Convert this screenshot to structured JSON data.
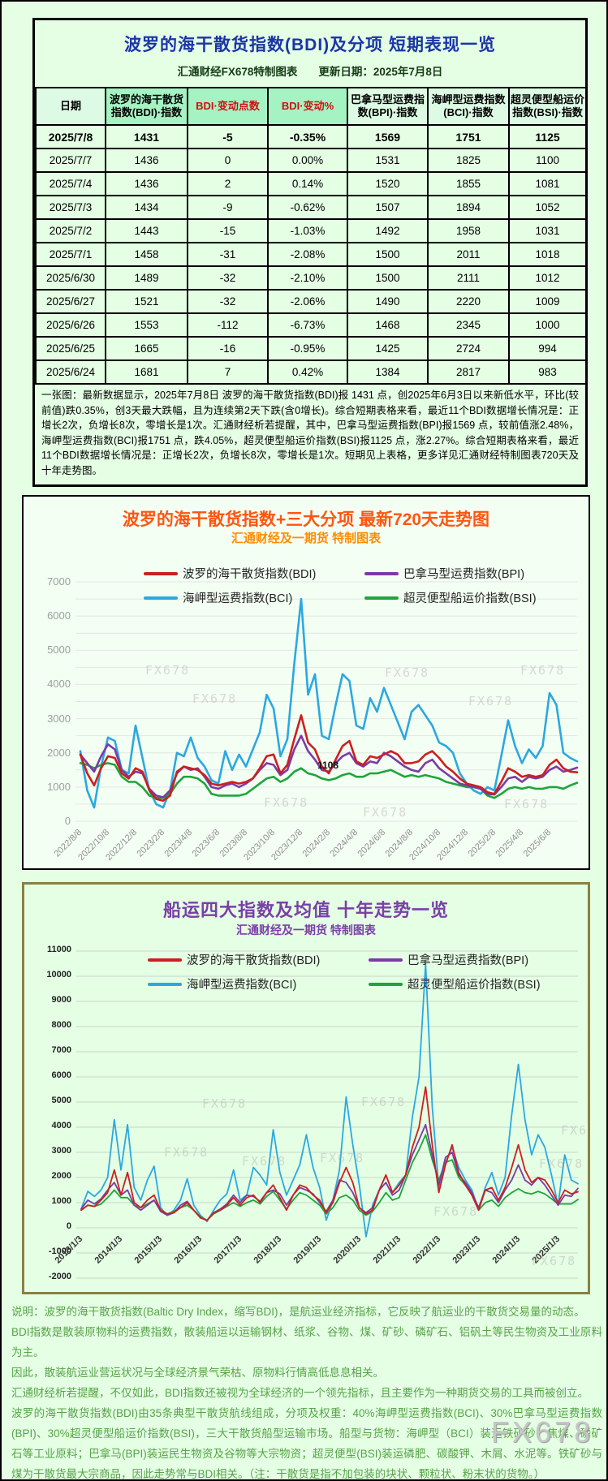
{
  "page": {
    "watermark": "FX678"
  },
  "colors": {
    "table_title": "#1b35a8",
    "header_accent_red": "#cc1111",
    "chart1_title": "#ff5511",
    "chart1_subtitle": "#ff8c00",
    "chart2_title": "#7a3fa8",
    "footer_text": "#57a348",
    "series_bdi": "#cc1f1f",
    "series_bpi": "#7b3ba6",
    "series_bci": "#2ba8e0",
    "series_bsi": "#1fa43c"
  },
  "table_panel": {
    "title": "波罗的海干散货指数(BDI)及分项  短期表现一览",
    "brand": "汇通财经FX678特制图表",
    "update_date": "更新日期：2025年7月8日",
    "columns": [
      {
        "label": "日期",
        "accent": false,
        "tone": "pale"
      },
      {
        "label": "波罗的海干散货指数(BDI)·指数",
        "accent": false,
        "tone": "mint"
      },
      {
        "label": "BDI·变动点数",
        "accent": true,
        "tone": "mint"
      },
      {
        "label": "BDI·变动%",
        "accent": true,
        "tone": "mint"
      },
      {
        "label": "巴拿马型运费指数(BPI)·指数",
        "accent": false,
        "tone": "pale"
      },
      {
        "label": "海岬型运费指数(BCI)·指数",
        "accent": false,
        "tone": "pale"
      },
      {
        "label": "超灵便型船运价指数(BSI)·指数",
        "accent": false,
        "tone": "pale"
      }
    ],
    "rows": [
      [
        "2025/7/8",
        "1431",
        "-5",
        "-0.35%",
        "1569",
        "1751",
        "1125"
      ],
      [
        "2025/7/7",
        "1436",
        "0",
        "0.00%",
        "1531",
        "1825",
        "1100"
      ],
      [
        "2025/7/4",
        "1436",
        "2",
        "0.14%",
        "1520",
        "1855",
        "1081"
      ],
      [
        "2025/7/3",
        "1434",
        "-9",
        "-0.62%",
        "1507",
        "1894",
        "1052"
      ],
      [
        "2025/7/2",
        "1443",
        "-15",
        "-1.03%",
        "1492",
        "1958",
        "1031"
      ],
      [
        "2025/7/1",
        "1458",
        "-31",
        "-2.08%",
        "1500",
        "2011",
        "1018"
      ],
      [
        "2025/6/30",
        "1489",
        "-32",
        "-2.10%",
        "1500",
        "2111",
        "1012"
      ],
      [
        "2025/6/27",
        "1521",
        "-32",
        "-2.06%",
        "1490",
        "2220",
        "1009"
      ],
      [
        "2025/6/26",
        "1553",
        "-112",
        "-6.73%",
        "1468",
        "2345",
        "1000"
      ],
      [
        "2025/6/25",
        "1665",
        "-16",
        "-0.95%",
        "1425",
        "2724",
        "994"
      ],
      [
        "2025/6/24",
        "1681",
        "7",
        "0.42%",
        "1384",
        "2817",
        "983"
      ]
    ],
    "summary": "一张图：最新数据显示，2025年7月8日 波罗的海干散货指数(BDI)报 1431 点，创2025年6月3日以来新低水平，环比(较前值)跌0.35%，创3天最大跌幅，且为连续第2天下跌(含0增长)。综合短期表格来看，最近11个BDI数据增长情况是：正增长2次，负增长8次，零增长是1次。汇通财经析若提醒，其中，巴拿马型运费指数(BPI)报1569 点，较前值涨2.48%，海岬型运费指数(BCI)报1751 点，跌4.05%，超灵便型船运价指数(BSI)报1125 点，涨2.27%。综合短期表格来看，最近11个BDI数据增长情况是：正增长2次，负增长8次，零增长是1次。短期见上表格，更多详见汇通财经特制图表720天及十年走势图。"
  },
  "chart_data": [
    {
      "type": "line",
      "title": "波罗的海干散货指数+三大分项  最新720天走势图",
      "subtitle": "汇通财经及一期货 特制图表",
      "ylim": [
        0,
        7000
      ],
      "ytick_step": 1000,
      "grid": true,
      "legend_position": "top",
      "x_labels": [
        "2022/8/8",
        "2022/10/8",
        "2022/12/8",
        "2023/2/8",
        "2023/4/8",
        "2023/6/8",
        "2023/8/8",
        "2023/10/8",
        "2023/12/8",
        "2024/2/8",
        "2024/4/8",
        "2024/6/8",
        "2024/8/8",
        "2024/10/8",
        "2024/12/8",
        "2025/2/8",
        "2025/4/8",
        "2025/6/8"
      ],
      "annotation": {
        "text": "1108",
        "x_frac": 0.5,
        "value": 1650
      },
      "series": [
        {
          "name": "波罗的海干散货指数(BDI)",
          "color": "#cc1f1f",
          "values": [
            1950,
            1400,
            1050,
            1550,
            1900,
            1850,
            1400,
            1250,
            1550,
            1450,
            900,
            650,
            600,
            750,
            1450,
            1600,
            1550,
            1500,
            1350,
            1100,
            1050,
            1100,
            1150,
            1100,
            1150,
            1250,
            1550,
            1900,
            1950,
            1400,
            1650,
            2400,
            3100,
            2300,
            2100,
            1600,
            1400,
            1800,
            2200,
            2350,
            1750,
            1650,
            1900,
            1850,
            1950,
            2050,
            1950,
            1700,
            1700,
            1750,
            1950,
            2050,
            1850,
            1600,
            1450,
            1250,
            1100,
            1050,
            1000,
            850,
            800,
            1150,
            1550,
            1450,
            1300,
            1350,
            1300,
            1350,
            1650,
            1800,
            1550,
            1450,
            1431
          ]
        },
        {
          "name": "巴拿马型运费指数(BPI)",
          "color": "#7b3ba6",
          "values": [
            1950,
            1700,
            1450,
            1900,
            2250,
            2100,
            1500,
            1300,
            1450,
            1400,
            950,
            750,
            700,
            900,
            1400,
            1600,
            1500,
            1550,
            1300,
            1000,
            950,
            1050,
            1100,
            1000,
            1100,
            1250,
            1500,
            1700,
            1650,
            1350,
            1500,
            2100,
            2500,
            2050,
            1800,
            1500,
            1450,
            1700,
            1900,
            2000,
            1700,
            1600,
            1750,
            1700,
            2000,
            1900,
            1750,
            1600,
            1500,
            1450,
            1700,
            1800,
            1550,
            1400,
            1250,
            1100,
            1050,
            1000,
            950,
            800,
            780,
            1000,
            1250,
            1300,
            1150,
            1300,
            1250,
            1300,
            1500,
            1600,
            1450,
            1500,
            1569
          ]
        },
        {
          "name": "海岬型运费指数(BCI)",
          "color": "#2ba8e0",
          "values": [
            2050,
            900,
            400,
            1600,
            2450,
            2350,
            1500,
            1400,
            2800,
            1850,
            900,
            500,
            400,
            900,
            2000,
            1900,
            2450,
            1850,
            1600,
            1200,
            1100,
            2050,
            1500,
            1950,
            1600,
            2100,
            2600,
            3700,
            3300,
            1900,
            2400,
            4600,
            6500,
            3700,
            4300,
            2500,
            2400,
            3400,
            4300,
            4100,
            2800,
            2700,
            3600,
            3200,
            3900,
            3400,
            2900,
            2400,
            3200,
            3400,
            3100,
            2800,
            2300,
            2200,
            2000,
            1400,
            1100,
            900,
            800,
            1000,
            900,
            1900,
            2950,
            2200,
            1700,
            2100,
            1850,
            2200,
            3750,
            3400,
            2000,
            1850,
            1751
          ]
        },
        {
          "name": "超灵便型船运价指数(BSI)",
          "color": "#1fa43c",
          "values": [
            1700,
            1650,
            1550,
            1650,
            1700,
            1650,
            1300,
            1150,
            1150,
            1000,
            750,
            680,
            680,
            800,
            1100,
            1300,
            1300,
            1250,
            1100,
            800,
            750,
            750,
            750,
            750,
            800,
            950,
            1100,
            1250,
            1300,
            1150,
            1250,
            1450,
            1550,
            1400,
            1350,
            1250,
            1200,
            1250,
            1350,
            1400,
            1300,
            1300,
            1400,
            1400,
            1450,
            1500,
            1400,
            1300,
            1350,
            1300,
            1350,
            1300,
            1250,
            1150,
            1100,
            1050,
            1000,
            1000,
            950,
            750,
            680,
            800,
            950,
            1000,
            950,
            1000,
            950,
            950,
            1000,
            1000,
            950,
            1050,
            1125
          ]
        }
      ]
    },
    {
      "type": "line",
      "title": "船运四大指数及均值 十年走势一览",
      "subtitle": "汇通财经及一期货 特制图表",
      "ylim": [
        -2000,
        11000
      ],
      "ytick_step": 1000,
      "grid": true,
      "legend_position": "top",
      "x_labels": [
        "2013/1/3",
        "2014/1/3",
        "2015/1/3",
        "2016/1/3",
        "2017/1/3",
        "2018/1/3",
        "2019/1/3",
        "2020/1/3",
        "2021/1/3",
        "2022/1/3",
        "2023/1/3",
        "2024/1/3",
        "2025/1/3"
      ],
      "series": [
        {
          "name": "波罗的海干散货指数(BDI)",
          "color": "#cc1f1f",
          "values": [
            700,
            900,
            850,
            1100,
            1400,
            2300,
            1300,
            2200,
            1000,
            800,
            1100,
            1300,
            700,
            550,
            600,
            800,
            1000,
            700,
            400,
            300,
            600,
            700,
            900,
            1200,
            900,
            1200,
            1300,
            1000,
            1400,
            1700,
            1200,
            700,
            1300,
            1700,
            1600,
            1300,
            1100,
            600,
            1000,
            1800,
            2400,
            1800,
            800,
            550,
            700,
            1500,
            2100,
            1400,
            1700,
            2100,
            3200,
            4000,
            5600,
            3300,
            1400,
            2500,
            3300,
            2200,
            1700,
            1300,
            700,
            1500,
            1600,
            1100,
            1600,
            2400,
            3300,
            2300,
            1800,
            2000,
            1900,
            1500,
            1000,
            1500,
            1350,
            1431
          ]
        },
        {
          "name": "巴拿马型运费指数(BPI)",
          "color": "#7b3ba6",
          "values": [
            750,
            1100,
            950,
            1150,
            1500,
            1800,
            1300,
            1500,
            900,
            700,
            900,
            1100,
            650,
            500,
            600,
            900,
            1050,
            700,
            400,
            300,
            600,
            750,
            950,
            1300,
            1000,
            1300,
            1250,
            1050,
            1400,
            1500,
            1350,
            900,
            1300,
            1600,
            1500,
            1350,
            1000,
            650,
            1100,
            1900,
            1800,
            1400,
            800,
            600,
            800,
            1500,
            1800,
            1300,
            1500,
            2100,
            2900,
            3500,
            4100,
            2900,
            1700,
            2800,
            3000,
            2100,
            1800,
            1400,
            800,
            1500,
            1400,
            1000,
            1500,
            1900,
            2500,
            1900,
            1700,
            2000,
            1700,
            1300,
            900,
            1300,
            1250,
            1569
          ]
        },
        {
          "name": "海岬型运费指数(BCI)",
          "color": "#2ba8e0",
          "values": [
            750,
            1450,
            1250,
            1500,
            2000,
            4300,
            2300,
            4100,
            1600,
            1100,
            1900,
            2450,
            800,
            500,
            700,
            1100,
            1950,
            900,
            500,
            250,
            700,
            1100,
            1350,
            2300,
            1100,
            1300,
            2400,
            2100,
            1700,
            3900,
            2200,
            1300,
            1900,
            2500,
            3700,
            2400,
            1600,
            300,
            1100,
            2300,
            5200,
            3300,
            1700,
            -350,
            900,
            1500,
            2100,
            1400,
            1800,
            2100,
            4400,
            6000,
            10500,
            4800,
            1600,
            2600,
            3200,
            2400,
            1900,
            1500,
            700,
            1600,
            2200,
            1300,
            2000,
            4500,
            6500,
            4300,
            2900,
            3700,
            3200,
            2100,
            900,
            2900,
            1900,
            1751
          ]
        },
        {
          "name": "超灵便型船运价指数(BSI)",
          "color": "#1fa43c",
          "values": [
            700,
            900,
            850,
            950,
            1200,
            1500,
            1200,
            1200,
            900,
            800,
            950,
            1100,
            700,
            550,
            650,
            800,
            900,
            700,
            450,
            300,
            550,
            700,
            850,
            1000,
            850,
            1000,
            1100,
            950,
            1250,
            1450,
            1100,
            750,
            1100,
            1400,
            1300,
            1100,
            900,
            550,
            800,
            1200,
            1300,
            1100,
            700,
            500,
            650,
            1000,
            1400,
            1100,
            1200,
            1900,
            2600,
            3100,
            3700,
            2700,
            1900,
            2600,
            2700,
            2000,
            1700,
            1300,
            700,
            1000,
            1100,
            850,
            1200,
            1400,
            1550,
            1400,
            1350,
            1450,
            1350,
            1150,
            950,
            950,
            950,
            1125
          ]
        }
      ]
    }
  ],
  "footer": {
    "lines": [
      "说明：波罗的海干散货指数(Baltic Dry Index，缩写BDI)，是航运业经济指标，它反映了航运业的干散货交易量的动态。",
      "BDI指数是散装原物料的运费指数，散装船运以运输钢材、纸浆、谷物、煤、矿砂、磷矿石、铝矾土等民生物资及工业原料为主。",
      "因此，散装航运业营运状况与全球经济景气荣枯、原物料行情高低息息相关。",
      "汇通财经析若提醒，不仅如此，BDI指数还被视为全球经济的一个领先指标，且主要作为一种期货交易的工具而被创立。",
      "波罗的海干散货指数(BDI)由35条典型干散货航线组成，分项及权重：40%海岬型运费指数(BCI)、30%巴拿马型运费指数(BPI)、30%超灵便型船运价指数(BSI)，三大干散货船型运输市场。船型与货物：海岬型（BCI）装运铁矿砂、焦煤、磷矿石等工业原料；巴拿马(BPI)装运民生物资及谷物等大宗物资；超灵便型(BSI)装运磷肥、碳酸钾、木屑、水泥等。铁矿砂与煤为干散货最大宗商品，因此走势常与BDI相关。（注：干散货是指不加包装的块状、颗粒状、粉末状的货物。）"
    ]
  }
}
